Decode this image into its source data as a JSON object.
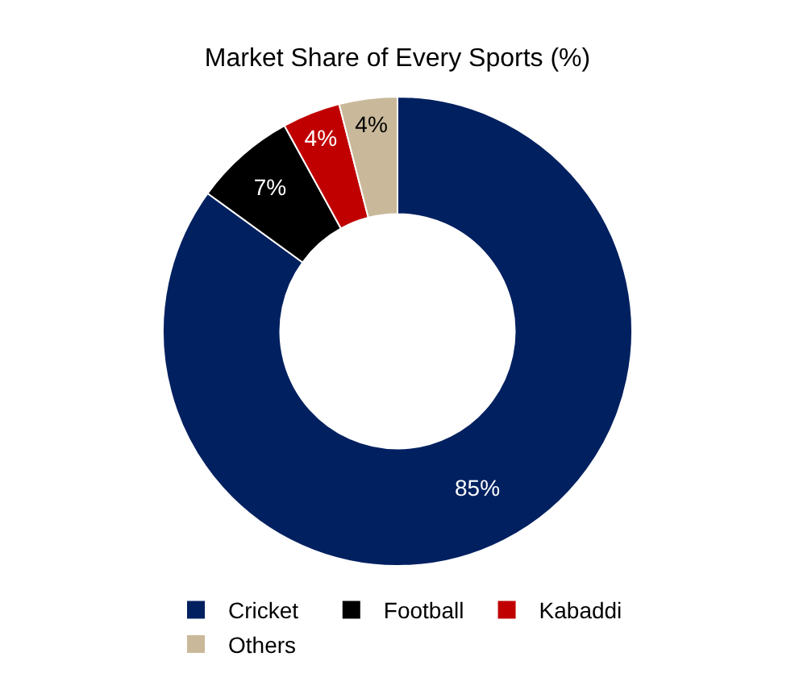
{
  "chart_data": {
    "type": "donut",
    "title": "Market Share of Every Sports (%)",
    "categories": [
      "Cricket",
      "Football",
      "Kabaddi",
      "Others"
    ],
    "values": [
      85,
      7,
      4,
      4
    ],
    "colors": [
      "#002060",
      "#000000",
      "#c00000",
      "#c9b99a"
    ],
    "value_labels": [
      "85%",
      "7%",
      "4%",
      "4%"
    ],
    "legend": "bottom"
  }
}
